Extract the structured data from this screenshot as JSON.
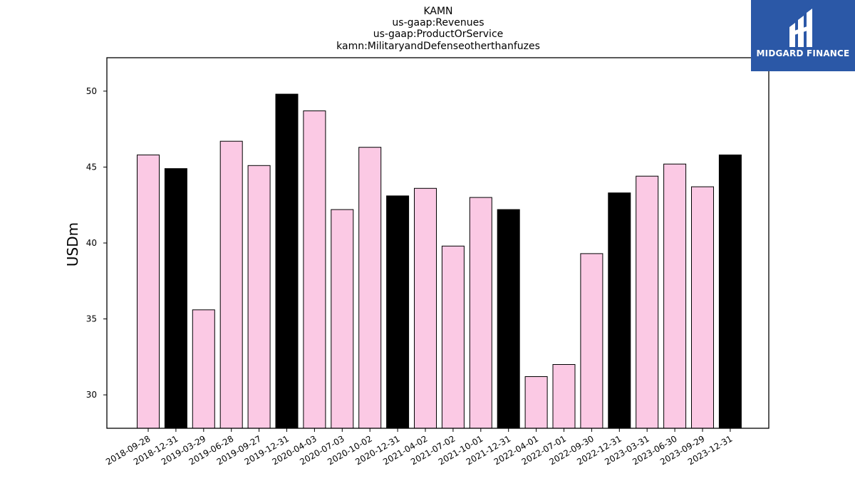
{
  "colors": {
    "annual_bar": "#000000",
    "quarter_bar": "#fbc9e4",
    "bar_edge": "#000000",
    "logo_bg": "#2b58a7"
  },
  "logo": {
    "text": "MIDGARD FINANCE",
    "icon": "midgard-logo-icon"
  },
  "chart_data": {
    "type": "bar",
    "title_lines": [
      "KAMN",
      "us-gaap:Revenues",
      "us-gaap:ProductOrService",
      "kamn:MilitaryandDefenseotherthanfuzes"
    ],
    "xlabel": "",
    "ylabel": "USDm",
    "ylim": [
      27.8,
      52.2
    ],
    "yticks": [
      30,
      35,
      40,
      45,
      50
    ],
    "grid": false,
    "categories": [
      "2018-09-28",
      "2018-12-31",
      "2019-03-29",
      "2019-06-28",
      "2019-09-27",
      "2019-12-31",
      "2020-04-03",
      "2020-07-03",
      "2020-10-02",
      "2020-12-31",
      "2021-04-02",
      "2021-07-02",
      "2021-10-01",
      "2021-12-31",
      "2022-04-01",
      "2022-07-01",
      "2022-09-30",
      "2022-12-31",
      "2023-03-31",
      "2023-06-30",
      "2023-09-29",
      "2023-12-31"
    ],
    "values": [
      45.8,
      44.9,
      35.6,
      46.7,
      45.1,
      49.8,
      48.7,
      42.2,
      46.3,
      43.1,
      43.6,
      39.8,
      43.0,
      42.2,
      31.2,
      32.0,
      39.3,
      43.3,
      44.4,
      45.2,
      43.7,
      45.8
    ],
    "bar_types": [
      "q",
      "a",
      "q",
      "q",
      "q",
      "a",
      "q",
      "q",
      "q",
      "a",
      "q",
      "q",
      "q",
      "a",
      "q",
      "q",
      "q",
      "a",
      "q",
      "q",
      "q",
      "a"
    ]
  }
}
